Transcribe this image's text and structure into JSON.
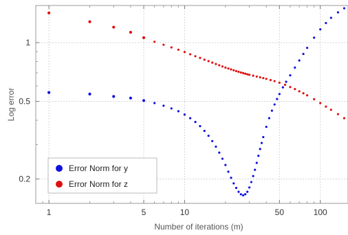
{
  "chart_data": {
    "type": "scatter",
    "xlabel": "Number of iterations (m)",
    "ylabel": "Log error",
    "x_scale": "log",
    "y_scale": "log",
    "xlim": [
      0.8,
      160
    ],
    "ylim": [
      0.15,
      1.55
    ],
    "x_ticks": [
      {
        "value": 1,
        "label": "1"
      },
      {
        "value": 5,
        "label": "5"
      },
      {
        "value": 10,
        "label": "10"
      },
      {
        "value": 50,
        "label": "50"
      },
      {
        "value": 100,
        "label": "100"
      }
    ],
    "y_ticks": [
      {
        "value": 0.2,
        "label": "0.2"
      },
      {
        "value": 0.5,
        "label": "0.5"
      },
      {
        "value": 1,
        "label": "1"
      }
    ],
    "grid": true,
    "legend_position": "bottom-left",
    "series": [
      {
        "name": "Error Norm for y",
        "color": "#1010e0",
        "x": [
          1,
          2,
          3,
          4,
          5,
          6,
          7,
          8,
          9,
          10,
          11,
          12,
          13,
          14,
          15,
          16,
          17,
          18,
          19,
          20,
          21,
          22,
          23,
          24,
          25,
          26,
          27,
          28,
          29,
          30,
          31,
          32,
          33,
          34,
          35,
          36,
          37,
          38,
          40,
          42,
          44,
          46,
          48,
          50,
          53,
          56,
          60,
          65,
          70,
          75,
          80,
          90,
          100,
          110,
          120,
          135,
          150
        ],
        "y": [
          0.555,
          0.545,
          0.53,
          0.52,
          0.505,
          0.49,
          0.475,
          0.46,
          0.445,
          0.428,
          0.41,
          0.392,
          0.373,
          0.353,
          0.333,
          0.313,
          0.293,
          0.273,
          0.254,
          0.236,
          0.218,
          0.203,
          0.19,
          0.18,
          0.172,
          0.167,
          0.165,
          0.167,
          0.172,
          0.181,
          0.193,
          0.207,
          0.223,
          0.242,
          0.263,
          0.285,
          0.306,
          0.328,
          0.37,
          0.41,
          0.448,
          0.482,
          0.514,
          0.545,
          0.59,
          0.63,
          0.68,
          0.745,
          0.81,
          0.875,
          0.94,
          1.06,
          1.17,
          1.26,
          1.34,
          1.43,
          1.5
        ]
      },
      {
        "name": "Error Norm for z",
        "color": "#e01010",
        "x": [
          1,
          2,
          3,
          4,
          5,
          6,
          7,
          8,
          9,
          10,
          11,
          12,
          13,
          14,
          15,
          16,
          17,
          18,
          19,
          20,
          21,
          22,
          23,
          24,
          25,
          26,
          27,
          28,
          29,
          30,
          32,
          34,
          36,
          38,
          40,
          43,
          46,
          50,
          55,
          60,
          65,
          70,
          75,
          80,
          90,
          100,
          110,
          120,
          135,
          150
        ],
        "y": [
          1.42,
          1.28,
          1.2,
          1.13,
          1.06,
          1.01,
          0.975,
          0.945,
          0.92,
          0.895,
          0.872,
          0.852,
          0.835,
          0.818,
          0.804,
          0.79,
          0.777,
          0.766,
          0.755,
          0.745,
          0.737,
          0.729,
          0.722,
          0.715,
          0.709,
          0.703,
          0.698,
          0.693,
          0.688,
          0.684,
          0.677,
          0.67,
          0.664,
          0.658,
          0.652,
          0.643,
          0.635,
          0.623,
          0.608,
          0.592,
          0.578,
          0.563,
          0.55,
          0.537,
          0.513,
          0.49,
          0.47,
          0.453,
          0.43,
          0.41
        ]
      }
    ]
  }
}
